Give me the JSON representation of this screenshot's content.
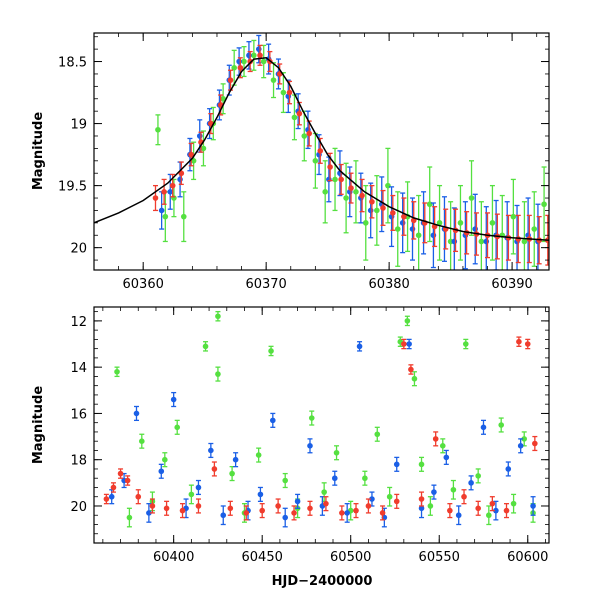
{
  "chart_data": [
    {
      "type": "scatter",
      "panel": "top",
      "xlabel": "",
      "ylabel": "Magnitude",
      "xlim": [
        60356,
        60393
      ],
      "ylim": [
        20.18,
        18.27
      ],
      "y_inverted": true,
      "xticks": [
        60360,
        60370,
        60380,
        60390
      ],
      "xtick_labels": [
        "60360",
        "60370",
        "60380",
        "60390"
      ],
      "yticks": [
        18.5,
        19,
        19.5,
        20
      ],
      "ytick_labels": [
        "18.5",
        "19",
        "19.5",
        "20"
      ],
      "grid": false,
      "legend": "none",
      "colors": {
        "green": "#55e040",
        "blue": "#1a5fe6",
        "red": "#f03c2d",
        "model": "#000000"
      },
      "model_curve": {
        "name": "",
        "x": [
          60356,
          60358,
          60360,
          60362,
          60364,
          60365,
          60366,
          60367,
          60368,
          60369,
          60370,
          60371,
          60372,
          60373,
          60374,
          60375,
          60376,
          60378,
          60380,
          60382,
          60384,
          60386,
          60388,
          60390,
          60393
        ],
        "y": [
          19.8,
          19.72,
          19.62,
          19.48,
          19.28,
          19.13,
          18.95,
          18.75,
          18.58,
          18.48,
          18.47,
          18.55,
          18.7,
          18.9,
          19.08,
          19.25,
          19.38,
          19.55,
          19.67,
          19.76,
          19.82,
          19.87,
          19.9,
          19.92,
          19.94
        ]
      },
      "series": [
        {
          "name": "",
          "color": "green",
          "x": [
            60361.2,
            60361.8,
            60362.5,
            60363.3,
            60364.1,
            60364.9,
            60365.7,
            60366.5,
            60367.4,
            60368.2,
            60369.0,
            60369.8,
            60370.6,
            60371.4,
            60372.3,
            60373.1,
            60374.0,
            60374.8,
            60375.6,
            60376.5,
            60377.3,
            60378.1,
            60379.0,
            60379.9,
            60380.7,
            60381.5,
            60382.4,
            60383.3,
            60384.1,
            60385.0,
            60385.8,
            60386.7,
            60387.5,
            60388.4,
            60389.2,
            60390.1,
            60391.0,
            60391.8,
            60392.6
          ],
          "y": [
            19.05,
            19.75,
            19.6,
            19.75,
            19.3,
            19.2,
            19.0,
            18.8,
            18.55,
            18.5,
            18.45,
            18.5,
            18.65,
            18.75,
            18.95,
            19.1,
            19.3,
            19.55,
            19.45,
            19.6,
            19.55,
            19.8,
            19.7,
            19.5,
            19.85,
            19.75,
            19.9,
            19.65,
            19.8,
            19.95,
            19.8,
            19.6,
            19.95,
            19.8,
            19.9,
            19.75,
            19.95,
            19.85,
            19.65
          ],
          "err": [
            0.12,
            0.2,
            0.15,
            0.2,
            0.15,
            0.14,
            0.13,
            0.12,
            0.14,
            0.12,
            0.12,
            0.13,
            0.14,
            0.16,
            0.18,
            0.2,
            0.22,
            0.25,
            0.25,
            0.28,
            0.25,
            0.3,
            0.28,
            0.3,
            0.3,
            0.28,
            0.32,
            0.3,
            0.3,
            0.32,
            0.3,
            0.3,
            0.32,
            0.3,
            0.32,
            0.3,
            0.32,
            0.3,
            0.3
          ]
        },
        {
          "name": "",
          "color": "blue",
          "x": [
            60361.5,
            60362.2,
            60363.0,
            60363.8,
            60364.6,
            60365.4,
            60366.2,
            60367.0,
            60367.8,
            60368.6,
            60369.4,
            60370.2,
            60371.0,
            60371.8,
            60372.6,
            60373.4,
            60374.3,
            60375.1,
            60376.0,
            60376.8,
            60377.7,
            60378.5,
            60379.4,
            60380.2,
            60381.1,
            60381.9,
            60382.8,
            60383.6,
            60384.5,
            60385.3,
            60386.2,
            60387.0,
            60387.9,
            60388.7,
            60389.6,
            60390.4,
            60391.3,
            60392.1
          ],
          "y": [
            19.7,
            19.55,
            19.45,
            19.25,
            19.1,
            19.0,
            18.85,
            18.65,
            18.5,
            18.45,
            18.4,
            18.48,
            18.6,
            18.78,
            18.9,
            19.05,
            19.25,
            19.45,
            19.4,
            19.55,
            19.6,
            19.7,
            19.65,
            19.75,
            19.8,
            19.85,
            19.8,
            19.9,
            19.85,
            19.95,
            19.9,
            19.85,
            19.95,
            19.9,
            19.92,
            19.95,
            19.9,
            19.95
          ],
          "err": [
            0.15,
            0.14,
            0.14,
            0.13,
            0.13,
            0.12,
            0.12,
            0.12,
            0.11,
            0.11,
            0.11,
            0.12,
            0.12,
            0.13,
            0.14,
            0.15,
            0.16,
            0.18,
            0.18,
            0.2,
            0.2,
            0.22,
            0.22,
            0.24,
            0.24,
            0.25,
            0.25,
            0.26,
            0.26,
            0.27,
            0.27,
            0.28,
            0.28,
            0.28,
            0.29,
            0.29,
            0.3,
            0.3
          ]
        },
        {
          "name": "",
          "color": "red",
          "x": [
            60361.0,
            60361.7,
            60362.4,
            60363.1,
            60363.9,
            60364.7,
            60365.5,
            60366.3,
            60367.1,
            60367.9,
            60368.7,
            60369.5,
            60370.3,
            60371.1,
            60371.9,
            60372.7,
            60373.5,
            60374.4,
            60375.2,
            60376.1,
            60376.9,
            60377.8,
            60378.6,
            60379.5,
            60380.3,
            60381.2,
            60382.0,
            60382.9,
            60383.7,
            60384.6,
            60385.4,
            60386.3,
            60387.1,
            60388.0,
            60388.8,
            60389.7,
            60390.5,
            60391.4,
            60392.2,
            60392.9
          ],
          "y": [
            19.6,
            19.55,
            19.5,
            19.4,
            19.25,
            19.15,
            19.0,
            18.85,
            18.65,
            18.55,
            18.5,
            18.45,
            18.5,
            18.6,
            18.75,
            18.92,
            19.08,
            19.22,
            19.35,
            19.45,
            19.52,
            19.58,
            19.63,
            19.68,
            19.72,
            19.75,
            19.78,
            19.8,
            19.83,
            19.85,
            19.86,
            19.88,
            19.89,
            19.9,
            19.91,
            19.92,
            19.93,
            19.93,
            19.94,
            19.94
          ],
          "err": [
            0.1,
            0.1,
            0.09,
            0.09,
            0.09,
            0.08,
            0.08,
            0.08,
            0.08,
            0.08,
            0.08,
            0.08,
            0.08,
            0.08,
            0.09,
            0.09,
            0.1,
            0.1,
            0.11,
            0.12,
            0.12,
            0.13,
            0.13,
            0.14,
            0.14,
            0.15,
            0.15,
            0.16,
            0.16,
            0.16,
            0.17,
            0.17,
            0.17,
            0.18,
            0.18,
            0.18,
            0.19,
            0.19,
            0.19,
            0.2
          ]
        }
      ]
    },
    {
      "type": "scatter",
      "panel": "bottom",
      "xlabel": "HJD−2400000",
      "ylabel": "Magnitude",
      "xlim": [
        60355,
        60612
      ],
      "ylim": [
        21.6,
        11.4
      ],
      "y_inverted": true,
      "xticks": [
        60400,
        60450,
        60500,
        60550,
        60600
      ],
      "xtick_labels": [
        "60400",
        "60450",
        "60500",
        "60550",
        "60600"
      ],
      "yticks": [
        12,
        14,
        16,
        18,
        20
      ],
      "ytick_labels": [
        "12",
        "14",
        "16",
        "18",
        "20"
      ],
      "grid": false,
      "legend": "none",
      "colors": {
        "green": "#55e040",
        "blue": "#1a5fe6",
        "red": "#f03c2d"
      },
      "series": [
        {
          "name": "",
          "color": "green",
          "x": [
            60368,
            60375,
            60382,
            60388,
            60395,
            60402,
            60410,
            60418,
            60425,
            60425,
            60433,
            60440,
            60448,
            60455,
            60463,
            60470,
            60478,
            60485,
            60492,
            60500,
            60508,
            60515,
            60522,
            60528,
            60532,
            60536,
            60540,
            60545,
            60552,
            60558,
            60565,
            60572,
            60578,
            60585,
            60592,
            60598,
            60603
          ],
          "y": [
            14.2,
            20.5,
            17.2,
            19.8,
            18.0,
            16.6,
            19.5,
            13.1,
            11.8,
            14.3,
            18.6,
            20.3,
            17.8,
            13.3,
            18.9,
            20.1,
            16.2,
            19.4,
            17.7,
            20.2,
            18.8,
            16.9,
            19.6,
            12.9,
            12.0,
            14.5,
            18.2,
            20.0,
            17.4,
            19.3,
            13.0,
            18.7,
            20.4,
            16.5,
            19.9,
            17.1,
            20.3
          ],
          "err": [
            0.2,
            0.4,
            0.3,
            0.4,
            0.3,
            0.3,
            0.4,
            0.2,
            0.2,
            0.3,
            0.3,
            0.4,
            0.3,
            0.2,
            0.3,
            0.4,
            0.3,
            0.4,
            0.3,
            0.4,
            0.3,
            0.3,
            0.4,
            0.2,
            0.2,
            0.3,
            0.3,
            0.4,
            0.3,
            0.4,
            0.2,
            0.3,
            0.4,
            0.3,
            0.4,
            0.3,
            0.4
          ]
        },
        {
          "name": "",
          "color": "blue",
          "x": [
            60365,
            60372,
            60379,
            60386,
            60393,
            60400,
            60407,
            60414,
            60421,
            60428,
            60435,
            60442,
            60449,
            60456,
            60463,
            60470,
            60477,
            60484,
            60491,
            60498,
            60505,
            60512,
            60519,
            60526,
            60533,
            60540,
            60547,
            60554,
            60561,
            60568,
            60575,
            60582,
            60589,
            60596,
            60603
          ],
          "y": [
            19.6,
            18.9,
            16.0,
            20.3,
            18.5,
            15.4,
            20.1,
            19.2,
            17.6,
            20.4,
            18.0,
            20.2,
            19.5,
            16.3,
            20.5,
            19.8,
            17.4,
            20.0,
            18.8,
            20.3,
            13.1,
            19.7,
            20.5,
            18.2,
            13.0,
            20.1,
            19.4,
            17.9,
            20.4,
            19.0,
            16.6,
            20.2,
            18.4,
            17.4,
            20.0
          ],
          "err": [
            0.3,
            0.3,
            0.3,
            0.4,
            0.3,
            0.3,
            0.4,
            0.3,
            0.3,
            0.4,
            0.3,
            0.4,
            0.3,
            0.3,
            0.4,
            0.3,
            0.3,
            0.4,
            0.3,
            0.4,
            0.2,
            0.3,
            0.4,
            0.3,
            0.2,
            0.4,
            0.3,
            0.3,
            0.4,
            0.3,
            0.3,
            0.4,
            0.3,
            0.3,
            0.4
          ]
        },
        {
          "name": "",
          "color": "red",
          "x": [
            60362,
            60366,
            60370,
            60374,
            60380,
            60388,
            60396,
            60405,
            60414,
            60423,
            60432,
            60441,
            60450,
            60459,
            60468,
            60477,
            60486,
            60495,
            60503,
            60510,
            60518,
            60526,
            60530,
            60534,
            60540,
            60548,
            60556,
            60564,
            60572,
            60580,
            60588,
            60595,
            60600,
            60604
          ],
          "y": [
            19.7,
            19.2,
            18.6,
            18.9,
            19.6,
            20.0,
            20.1,
            20.2,
            20.0,
            18.4,
            20.1,
            20.3,
            20.2,
            20.0,
            20.3,
            20.1,
            19.9,
            20.3,
            20.2,
            20.0,
            20.3,
            19.8,
            13.0,
            14.1,
            19.7,
            17.1,
            20.2,
            19.6,
            20.1,
            19.9,
            20.2,
            12.9,
            13.0,
            17.3
          ],
          "err": [
            0.2,
            0.2,
            0.2,
            0.2,
            0.3,
            0.3,
            0.3,
            0.3,
            0.3,
            0.3,
            0.3,
            0.3,
            0.3,
            0.3,
            0.3,
            0.3,
            0.3,
            0.3,
            0.3,
            0.3,
            0.3,
            0.3,
            0.2,
            0.2,
            0.3,
            0.3,
            0.3,
            0.3,
            0.3,
            0.3,
            0.3,
            0.2,
            0.2,
            0.3
          ]
        }
      ]
    }
  ]
}
